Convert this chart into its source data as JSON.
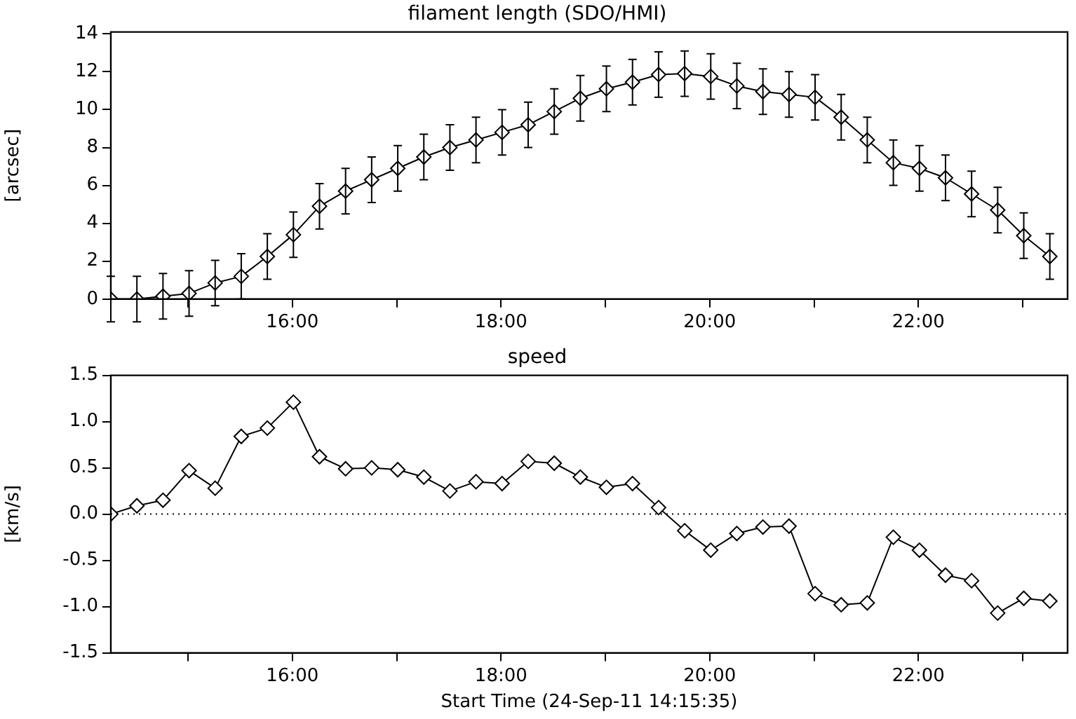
{
  "chart_data": [
    {
      "type": "line",
      "title": "filament length (SDO/HMI)",
      "ylabel": "[arcsec]",
      "marker": "diamond",
      "grid": false,
      "legend": false,
      "x": [
        14.26,
        14.51,
        14.76,
        15.01,
        15.26,
        15.51,
        15.76,
        16.01,
        16.26,
        16.51,
        16.76,
        17.01,
        17.26,
        17.51,
        17.76,
        18.01,
        18.26,
        18.51,
        18.76,
        19.01,
        19.26,
        19.51,
        19.76,
        20.01,
        20.26,
        20.51,
        20.76,
        21.01,
        21.26,
        21.51,
        21.76,
        22.01,
        22.26,
        22.51,
        22.76,
        23.01,
        23.26
      ],
      "values": [
        0,
        0,
        0.15,
        0.3,
        0.85,
        1.2,
        2.25,
        3.4,
        4.9,
        5.7,
        6.3,
        6.9,
        7.5,
        8.0,
        8.4,
        8.8,
        9.2,
        9.9,
        10.6,
        11.1,
        11.45,
        11.85,
        11.9,
        11.75,
        11.25,
        10.95,
        10.8,
        10.65,
        9.6,
        8.4,
        7.2,
        6.9,
        6.4,
        5.55,
        4.7,
        3.35,
        2.25
      ],
      "errors": [
        1.2,
        1.2,
        1.2,
        1.2,
        1.2,
        1.2,
        1.2,
        1.2,
        1.2,
        1.2,
        1.2,
        1.2,
        1.2,
        1.2,
        1.2,
        1.2,
        1.2,
        1.2,
        1.2,
        1.2,
        1.2,
        1.2,
        1.2,
        1.2,
        1.2,
        1.2,
        1.2,
        1.2,
        1.2,
        1.2,
        1.2,
        1.2,
        1.2,
        1.2,
        1.2,
        1.2,
        1.2
      ],
      "xlim": [
        14.26,
        23.43
      ],
      "xticks": [
        {
          "value": 15,
          "label": null
        },
        {
          "value": 16,
          "label": "16:00"
        },
        {
          "value": 17,
          "label": null
        },
        {
          "value": 18,
          "label": "18:00"
        },
        {
          "value": 19,
          "label": null
        },
        {
          "value": 20,
          "label": "20:00"
        },
        {
          "value": 21,
          "label": null
        },
        {
          "value": 22,
          "label": "22:00"
        },
        {
          "value": 23,
          "label": null
        }
      ],
      "ylim": [
        0,
        14.1
      ],
      "yticks": [
        0,
        2,
        4,
        6,
        8,
        10,
        12,
        14
      ]
    },
    {
      "type": "line",
      "title": "speed",
      "ylabel": "[km/s]",
      "xlabel": "Start Time (24-Sep-11 14:15:35)",
      "marker": "diamond",
      "grid": false,
      "legend": false,
      "x": [
        14.26,
        14.51,
        14.76,
        15.01,
        15.26,
        15.51,
        15.76,
        16.01,
        16.26,
        16.51,
        16.76,
        17.01,
        17.26,
        17.51,
        17.76,
        18.01,
        18.26,
        18.51,
        18.76,
        19.01,
        19.26,
        19.51,
        19.76,
        20.01,
        20.26,
        20.51,
        20.76,
        21.01,
        21.26,
        21.51,
        21.76,
        22.01,
        22.26,
        22.51,
        22.76,
        23.01,
        23.26
      ],
      "values": [
        0,
        0.09,
        0.15,
        0.47,
        0.28,
        0.84,
        0.93,
        1.21,
        0.62,
        0.49,
        0.5,
        0.48,
        0.4,
        0.25,
        0.35,
        0.33,
        0.57,
        0.55,
        0.4,
        0.29,
        0.33,
        0.07,
        -0.18,
        -0.39,
        -0.21,
        -0.14,
        -0.13,
        -0.86,
        -0.98,
        -0.96,
        -0.25,
        -0.39,
        -0.66,
        -0.72,
        -1.07,
        -0.91,
        -0.94
      ],
      "xlim": [
        14.26,
        23.43
      ],
      "xticks": [
        {
          "value": 15,
          "label": null
        },
        {
          "value": 16,
          "label": "16:00"
        },
        {
          "value": 17,
          "label": null
        },
        {
          "value": 18,
          "label": "18:00"
        },
        {
          "value": 19,
          "label": null
        },
        {
          "value": 20,
          "label": "20:00"
        },
        {
          "value": 21,
          "label": null
        },
        {
          "value": 22,
          "label": "22:00"
        },
        {
          "value": 23,
          "label": null
        }
      ],
      "ylim": [
        -1.5,
        1.5
      ],
      "yticks": [
        {
          "value": 1.5,
          "label": "1.5"
        },
        {
          "value": 1,
          "label": "1.0"
        },
        {
          "value": 0.5,
          "label": "0.5"
        },
        {
          "value": 0,
          "label": "0.0"
        },
        {
          "value": -0.5,
          "label": "-0.5"
        },
        {
          "value": -1,
          "label": "-1.0"
        },
        {
          "value": -1.5,
          "label": "-1.5"
        }
      ],
      "ref_lines": [
        {
          "axis": "y",
          "value": 0,
          "line_style": "dotted"
        }
      ]
    }
  ]
}
